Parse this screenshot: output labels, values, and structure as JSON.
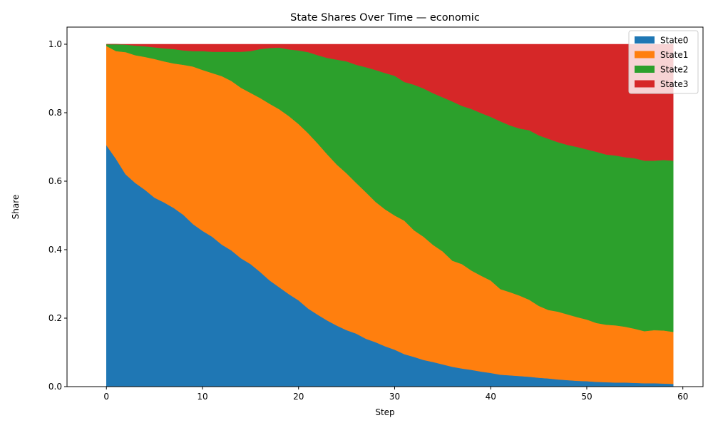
{
  "chart_data": {
    "type": "area",
    "stacked": true,
    "title": "State Shares Over Time — economic",
    "xlabel": "Step",
    "ylabel": "Share",
    "xlim": [
      -4.1,
      62.1
    ],
    "ylim": [
      0,
      1.05
    ],
    "xticks": [
      0,
      10,
      20,
      30,
      40,
      50,
      60
    ],
    "yticks": [
      0.0,
      0.2,
      0.4,
      0.6,
      0.8,
      1.0
    ],
    "xtick_labels": [
      "0",
      "10",
      "20",
      "30",
      "40",
      "50",
      "60"
    ],
    "ytick_labels": [
      "0.0",
      "0.2",
      "0.4",
      "0.6",
      "0.8",
      "1.0"
    ],
    "legend_position": "top-right",
    "grid": false,
    "x": [
      0,
      1,
      2,
      3,
      4,
      5,
      6,
      7,
      8,
      9,
      10,
      11,
      12,
      13,
      14,
      15,
      16,
      17,
      18,
      19,
      20,
      21,
      22,
      23,
      24,
      25,
      26,
      27,
      28,
      29,
      30,
      31,
      32,
      33,
      34,
      35,
      36,
      37,
      38,
      39,
      40,
      41,
      42,
      43,
      44,
      45,
      46,
      47,
      48,
      49,
      50,
      51,
      52,
      53,
      54,
      55,
      56,
      57,
      58,
      59
    ],
    "series": [
      {
        "name": "State0",
        "color": "#1f77b4",
        "values": [
          0.705,
          0.665,
          0.62,
          0.595,
          0.575,
          0.552,
          0.538,
          0.522,
          0.502,
          0.475,
          0.455,
          0.438,
          0.415,
          0.398,
          0.375,
          0.358,
          0.335,
          0.31,
          0.29,
          0.27,
          0.252,
          0.228,
          0.21,
          0.193,
          0.178,
          0.165,
          0.155,
          0.14,
          0.13,
          0.118,
          0.108,
          0.095,
          0.087,
          0.078,
          0.072,
          0.065,
          0.058,
          0.053,
          0.049,
          0.044,
          0.04,
          0.035,
          0.033,
          0.031,
          0.029,
          0.026,
          0.024,
          0.021,
          0.019,
          0.017,
          0.016,
          0.014,
          0.013,
          0.012,
          0.012,
          0.011,
          0.01,
          0.01,
          0.009,
          0.008
        ]
      },
      {
        "name": "State1",
        "color": "#ff7f0e",
        "values": [
          0.29,
          0.315,
          0.357,
          0.373,
          0.388,
          0.405,
          0.412,
          0.422,
          0.438,
          0.46,
          0.47,
          0.478,
          0.492,
          0.495,
          0.498,
          0.5,
          0.508,
          0.516,
          0.52,
          0.52,
          0.515,
          0.512,
          0.5,
          0.485,
          0.47,
          0.458,
          0.44,
          0.428,
          0.41,
          0.4,
          0.392,
          0.39,
          0.37,
          0.36,
          0.342,
          0.33,
          0.31,
          0.305,
          0.29,
          0.28,
          0.27,
          0.25,
          0.243,
          0.235,
          0.225,
          0.21,
          0.2,
          0.198,
          0.192,
          0.186,
          0.18,
          0.172,
          0.168,
          0.167,
          0.163,
          0.158,
          0.152,
          0.155,
          0.155,
          0.152
        ]
      },
      {
        "name": "State2",
        "color": "#2ca02c",
        "values": [
          0.005,
          0.02,
          0.022,
          0.028,
          0.031,
          0.034,
          0.038,
          0.042,
          0.042,
          0.045,
          0.055,
          0.062,
          0.071,
          0.085,
          0.105,
          0.122,
          0.143,
          0.163,
          0.18,
          0.195,
          0.215,
          0.237,
          0.258,
          0.282,
          0.307,
          0.327,
          0.345,
          0.365,
          0.385,
          0.398,
          0.408,
          0.405,
          0.425,
          0.433,
          0.443,
          0.45,
          0.465,
          0.462,
          0.472,
          0.475,
          0.478,
          0.49,
          0.487,
          0.488,
          0.495,
          0.498,
          0.5,
          0.495,
          0.495,
          0.497,
          0.497,
          0.5,
          0.497,
          0.496,
          0.495,
          0.498,
          0.498,
          0.495,
          0.498,
          0.5
        ]
      },
      {
        "name": "State3",
        "color": "#d62728",
        "values": [
          0,
          0,
          0.001,
          0.004,
          0.006,
          0.009,
          0.012,
          0.014,
          0.018,
          0.02,
          0.02,
          0.022,
          0.022,
          0.022,
          0.022,
          0.02,
          0.014,
          0.011,
          0.01,
          0.015,
          0.018,
          0.023,
          0.032,
          0.04,
          0.045,
          0.05,
          0.06,
          0.067,
          0.075,
          0.084,
          0.092,
          0.11,
          0.118,
          0.129,
          0.143,
          0.155,
          0.167,
          0.18,
          0.189,
          0.201,
          0.212,
          0.225,
          0.237,
          0.246,
          0.251,
          0.266,
          0.276,
          0.286,
          0.294,
          0.3,
          0.307,
          0.314,
          0.322,
          0.325,
          0.33,
          0.333,
          0.34,
          0.34,
          0.338,
          0.34
        ]
      }
    ]
  }
}
